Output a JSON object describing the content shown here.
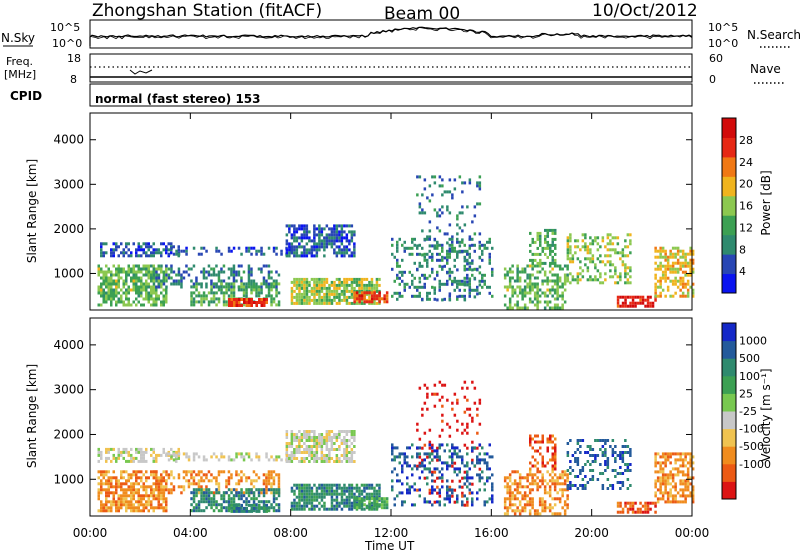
{
  "header": {
    "title": "Zhongshan Station (fitACF)",
    "beam": "Beam 00",
    "date": "10/Oct/2012",
    "mode": "normal (fast stereo) 153"
  },
  "strip_noise": {
    "left_label": "N.Sky",
    "right_label": "N.Search",
    "left_ticks": [
      "10^5",
      "10^0"
    ],
    "right_ticks": [
      "10^5",
      "10^0"
    ]
  },
  "strip_freq": {
    "left_label_top": "Freq.",
    "left_label_bottom": "[MHz]",
    "right_label": "Nave",
    "left_ticks": [
      "18",
      "8"
    ],
    "right_ticks": [
      "60",
      "0"
    ],
    "cpid_label": "CPID"
  },
  "colors": {
    "power": [
      "#0a14f0",
      "#2846b4",
      "#2f8a6e",
      "#3ca053",
      "#8cc850",
      "#f0b41e",
      "#f07814",
      "#e62814",
      "#d20a0a"
    ],
    "velocity": [
      "#dc1414",
      "#ec5a14",
      "#f08c1e",
      "#f0c350",
      "#c8c8c8",
      "#78c850",
      "#3ca053",
      "#2f8a6e",
      "#235a9b",
      "#1428c8"
    ]
  },
  "chart_data": [
    {
      "type": "heatmap",
      "panel": "power",
      "ylabel": "Slant Range [km]",
      "yticks": [
        "1000",
        "2000",
        "3000",
        "4000"
      ],
      "ylim": [
        180,
        4600
      ],
      "xlim": [
        0,
        24
      ],
      "colorbar_label": "Power [dB]",
      "colorbar_ticks": [
        "28",
        "24",
        "20",
        "16",
        "12",
        "8",
        "4"
      ],
      "colorbar_range": [
        0,
        32
      ],
      "regions": [
        {
          "x": [
            0.3,
            3.0
          ],
          "y": [
            300,
            1200
          ],
          "value": 14,
          "density": 0.7
        },
        {
          "x": [
            0.3,
            3.5
          ],
          "y": [
            1400,
            1700
          ],
          "value": 6,
          "density": 0.5
        },
        {
          "x": [
            3.0,
            8.0
          ],
          "y": [
            1400,
            1600
          ],
          "value": 6,
          "density": 0.4
        },
        {
          "x": [
            7.8,
            10.5
          ],
          "y": [
            1400,
            2100
          ],
          "value": 6,
          "density": 0.7
        },
        {
          "x": [
            2.5,
            7.5
          ],
          "y": [
            700,
            1200
          ],
          "value": 8,
          "density": 0.4
        },
        {
          "x": [
            4.0,
            7.5
          ],
          "y": [
            300,
            800
          ],
          "value": 12,
          "density": 0.6
        },
        {
          "x": [
            5.5,
            7.0
          ],
          "y": [
            250,
            450
          ],
          "value": 27,
          "density": 0.9
        },
        {
          "x": [
            8.0,
            11.5
          ],
          "y": [
            300,
            900
          ],
          "value": 16,
          "density": 0.8
        },
        {
          "x": [
            10.5,
            11.8
          ],
          "y": [
            350,
            600
          ],
          "value": 26,
          "density": 0.8
        },
        {
          "x": [
            13.0,
            15.5
          ],
          "y": [
            400,
            3200
          ],
          "value": 8,
          "density": 0.12
        },
        {
          "x": [
            12.0,
            16.0
          ],
          "y": [
            400,
            1800
          ],
          "value": 9,
          "density": 0.3
        },
        {
          "x": [
            16.5,
            19.0
          ],
          "y": [
            250,
            1200
          ],
          "value": 14,
          "density": 0.5
        },
        {
          "x": [
            17.5,
            18.5
          ],
          "y": [
            1200,
            2000
          ],
          "value": 13,
          "density": 0.4
        },
        {
          "x": [
            19.0,
            21.5
          ],
          "y": [
            800,
            1900
          ],
          "value": 16,
          "density": 0.35
        },
        {
          "x": [
            21.0,
            22.5
          ],
          "y": [
            250,
            500
          ],
          "value": 28,
          "density": 0.7
        },
        {
          "x": [
            22.5,
            24.0
          ],
          "y": [
            500,
            1600
          ],
          "value": 19,
          "density": 0.6
        }
      ]
    },
    {
      "type": "heatmap",
      "panel": "velocity",
      "ylabel": "Slant Range [km]",
      "yticks": [
        "1000",
        "2000",
        "3000",
        "4000"
      ],
      "ylim": [
        180,
        4600
      ],
      "xlim": [
        0,
        24
      ],
      "xticks": [
        "00:00",
        "04:00",
        "08:00",
        "12:00",
        "16:00",
        "20:00",
        "00:00"
      ],
      "xlabel": "Time UT",
      "colorbar_label": "Velocity [m s⁻¹]",
      "colorbar_ticks": [
        "1000",
        "500",
        "100",
        "25",
        "-25",
        "-100",
        "-500",
        "-1000"
      ],
      "regions": [
        {
          "x": [
            0.3,
            3.0
          ],
          "y": [
            300,
            1200
          ],
          "class": 2,
          "density": 0.7
        },
        {
          "x": [
            0.3,
            3.5
          ],
          "y": [
            1400,
            1700
          ],
          "class": 4,
          "density": 0.5
        },
        {
          "x": [
            3.0,
            8.0
          ],
          "y": [
            1400,
            1600
          ],
          "class": 4,
          "density": 0.4
        },
        {
          "x": [
            7.8,
            10.5
          ],
          "y": [
            1400,
            2100
          ],
          "class": 4,
          "density": 0.7
        },
        {
          "x": [
            2.5,
            7.5
          ],
          "y": [
            700,
            1200
          ],
          "class": 2,
          "density": 0.4
        },
        {
          "x": [
            4.0,
            7.5
          ],
          "y": [
            300,
            800
          ],
          "class": 7,
          "density": 0.6
        },
        {
          "x": [
            5.5,
            7.0
          ],
          "y": [
            250,
            450
          ],
          "class": 7,
          "density": 0.8
        },
        {
          "x": [
            8.0,
            11.5
          ],
          "y": [
            300,
            900
          ],
          "class": 7,
          "density": 0.8
        },
        {
          "x": [
            10.5,
            11.8
          ],
          "y": [
            350,
            600
          ],
          "class": 6,
          "density": 0.7
        },
        {
          "x": [
            13.0,
            15.5
          ],
          "y": [
            400,
            3200
          ],
          "class": 0,
          "density": 0.12
        },
        {
          "x": [
            12.0,
            16.0
          ],
          "y": [
            400,
            1800
          ],
          "class": 8,
          "density": 0.3
        },
        {
          "x": [
            16.5,
            19.0
          ],
          "y": [
            250,
            1200
          ],
          "class": 2,
          "density": 0.5
        },
        {
          "x": [
            17.5,
            18.5
          ],
          "y": [
            1200,
            2000
          ],
          "class": 1,
          "density": 0.4
        },
        {
          "x": [
            19.0,
            21.5
          ],
          "y": [
            800,
            1900
          ],
          "class": 8,
          "density": 0.35
        },
        {
          "x": [
            21.0,
            22.5
          ],
          "y": [
            250,
            500
          ],
          "class": 1,
          "density": 0.7
        },
        {
          "x": [
            22.5,
            24.0
          ],
          "y": [
            500,
            1600
          ],
          "class": 2,
          "density": 0.6
        }
      ]
    }
  ]
}
